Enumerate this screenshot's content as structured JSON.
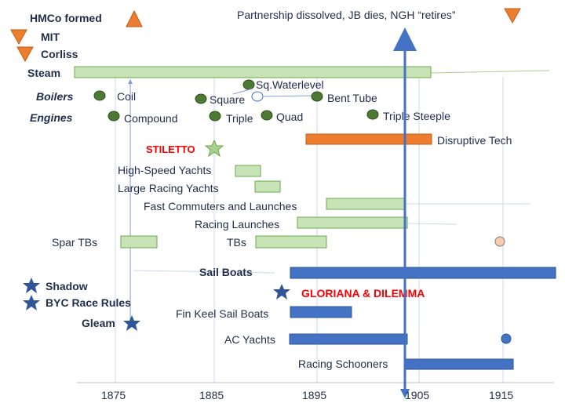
{
  "colors": {
    "steam_bar": "#c8e3b6",
    "steam_bar_stroke": "#6aa84f",
    "orange": "#ed7d31",
    "blue": "#4472c4",
    "blue_dark": "#2f5597",
    "green_dot": "#4c7a34",
    "star_blue": "#2f5597",
    "star_green": "#a9d18e",
    "red": "#ff0000",
    "axis_line": "#4472c4",
    "grid": "#c9d9ee",
    "pink_dot": "#f8cbad"
  },
  "top_events": {
    "hmco_formed": "HMCo formed",
    "mit": "MIT",
    "corliss": "Corliss",
    "partnership": "Partnership dissolved, JB dies, NGH “retires”"
  },
  "categories": {
    "steam": "Steam",
    "boilers": "Boilers",
    "engines": "Engines",
    "sail_boats": "Sail Boats"
  },
  "boilers": {
    "coil": "Coil",
    "square": "Square",
    "sq_waterlevel": "Sq.Waterlevel",
    "bent_tube": "Bent Tube"
  },
  "engines": {
    "compound": "Compound",
    "triple": "Triple",
    "quad": "Quad",
    "triple_steeple": "Triple Steeple"
  },
  "steam_rows": {
    "stiletto": "STILETTO",
    "disruptive_tech": "Disruptive Tech",
    "high_speed_yachts": "High-Speed Yachts",
    "large_racing_yachts": "Large Racing Yachts",
    "fast_commuters": "Fast Commuters and Launches",
    "racing_launches": "Racing Launches",
    "spar_tbs": "Spar TBs",
    "tbs": "TBs"
  },
  "sail_rows": {
    "shadow": "Shadow",
    "byc_race_rules": "BYC Race Rules",
    "gloriana": "GLORIANA & DILEMMA",
    "gleam": "Gleam",
    "fin_keel": "Fin Keel Sail Boats",
    "ac_yachts": "AC Yachts",
    "racing_schooners": "Racing Schooners"
  },
  "axis": {
    "ticks": [
      "1875",
      "1885",
      "1895",
      "1905",
      "1915"
    ]
  }
}
